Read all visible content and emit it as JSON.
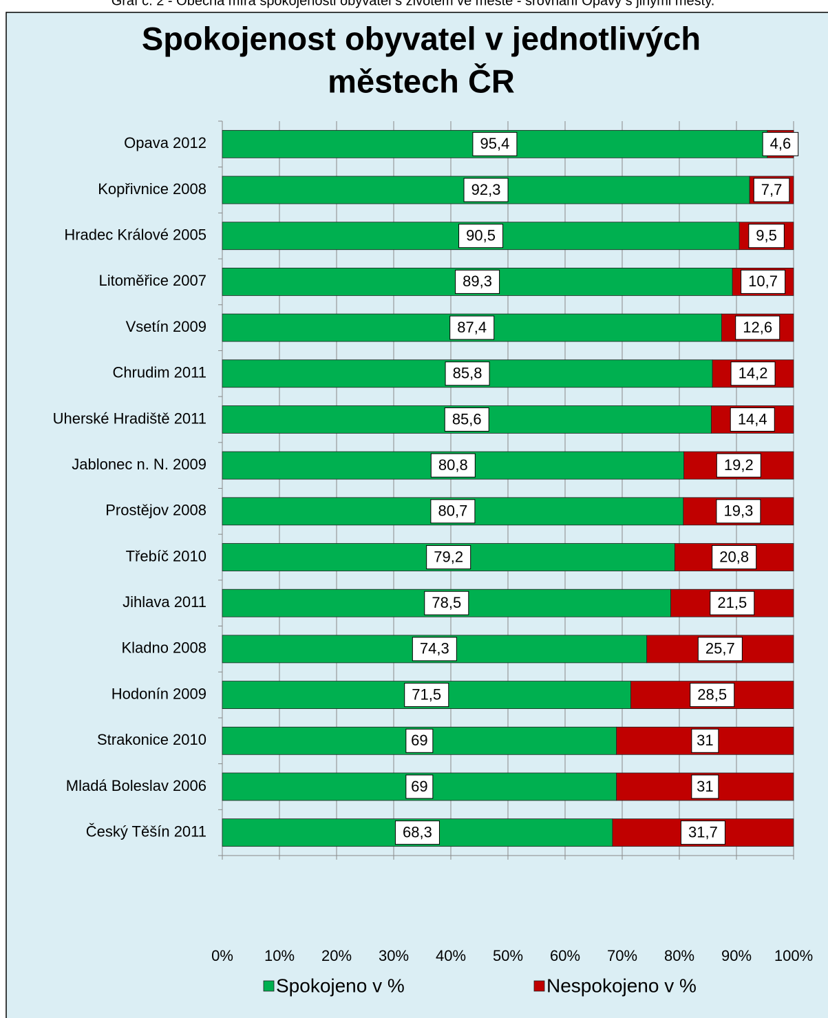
{
  "caption": "Graf č. 2 - Obecná míra spokojenosti obyvatel s životem ve městě - srovnání Opavy s jinými městy.",
  "chart_data": {
    "type": "stacked_barh",
    "title": [
      "Spokojenost obyvatel v jednotlivých",
      "městech ČR"
    ],
    "categories": [
      "Opava 2012",
      "Kopřivnice 2008",
      "Hradec Králové 2005",
      "Litoměřice 2007",
      "Vsetín 2009",
      "Chrudim 2011",
      "Uherské Hradiště 2011",
      "Jablonec n. N. 2009",
      "Prostějov 2008",
      "Třebíč 2010",
      "Jihlava 2011",
      "Kladno 2008",
      "Hodonín 2009",
      "Strakonice 2010",
      "Mladá Boleslav 2006",
      "Český Těšín 2011"
    ],
    "series": [
      {
        "name": "Spokojeno v %",
        "color": "#00b050",
        "values": [
          95.4,
          92.3,
          90.5,
          89.3,
          87.4,
          85.8,
          85.6,
          80.8,
          80.7,
          79.2,
          78.5,
          74.3,
          71.5,
          69,
          69,
          68.3
        ],
        "value_labels": [
          "95,4",
          "92,3",
          "90,5",
          "89,3",
          "87,4",
          "85,8",
          "85,6",
          "80,8",
          "80,7",
          "79,2",
          "78,5",
          "74,3",
          "71,5",
          "69",
          "69",
          "68,3"
        ]
      },
      {
        "name": "Nespokojeno v %",
        "color": "#c00000",
        "values": [
          4.6,
          7.7,
          9.5,
          10.7,
          12.6,
          14.2,
          14.4,
          19.2,
          19.3,
          20.8,
          21.5,
          25.7,
          28.5,
          31,
          31,
          31.7
        ],
        "value_labels": [
          "4,6",
          "7,7",
          "9,5",
          "10,7",
          "12,6",
          "14,2",
          "14,4",
          "19,2",
          "19,3",
          "20,8",
          "21,5",
          "25,7",
          "28,5",
          "31",
          "31",
          "31,7"
        ]
      }
    ],
    "xlim": [
      0,
      100
    ],
    "xticks": [
      {
        "value": 0,
        "label": "0%"
      },
      {
        "value": 10,
        "label": "10%"
      },
      {
        "value": 20,
        "label": "20%"
      },
      {
        "value": 30,
        "label": "30%"
      },
      {
        "value": 40,
        "label": "40%"
      },
      {
        "value": 50,
        "label": "50%"
      },
      {
        "value": 60,
        "label": "60%"
      },
      {
        "value": 70,
        "label": "70%"
      },
      {
        "value": 80,
        "label": "80%"
      },
      {
        "value": 90,
        "label": "90%"
      },
      {
        "value": 100,
        "label": "100%"
      }
    ],
    "grid": true,
    "legend": "bottom"
  }
}
